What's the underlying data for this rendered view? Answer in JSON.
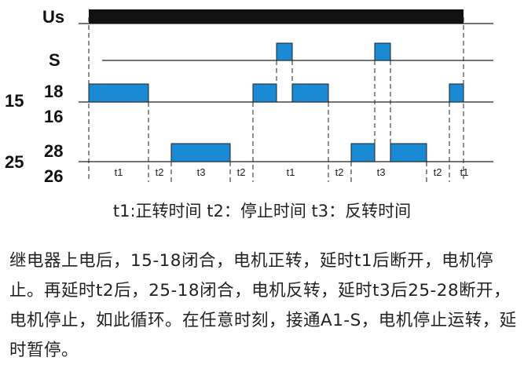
{
  "signals": {
    "us": "Us",
    "s": "S",
    "num15": "15",
    "num18": "18",
    "num16": "16",
    "num25": "25",
    "num28": "28",
    "num26": "26"
  },
  "segments": [
    "t1",
    "t2",
    "t3",
    "t2",
    "t1",
    "t2",
    "t3",
    "t2",
    "t1"
  ],
  "legend": "t1:正转时间 t2：停止时间 t3：反转时间",
  "description": "继电器上电后，15-18闭合，电机正转，延时t1后断开，电机停止。再延时t2后，25-18闭合，电机反转，延时t3后25-28断开，电机停止，如此循环。在任意时刻，接通A1-S，电机停止运转，延时暂停。",
  "colors": {
    "pulse": "#1a8ad4",
    "supply": "#111111",
    "line": "#222222"
  }
}
